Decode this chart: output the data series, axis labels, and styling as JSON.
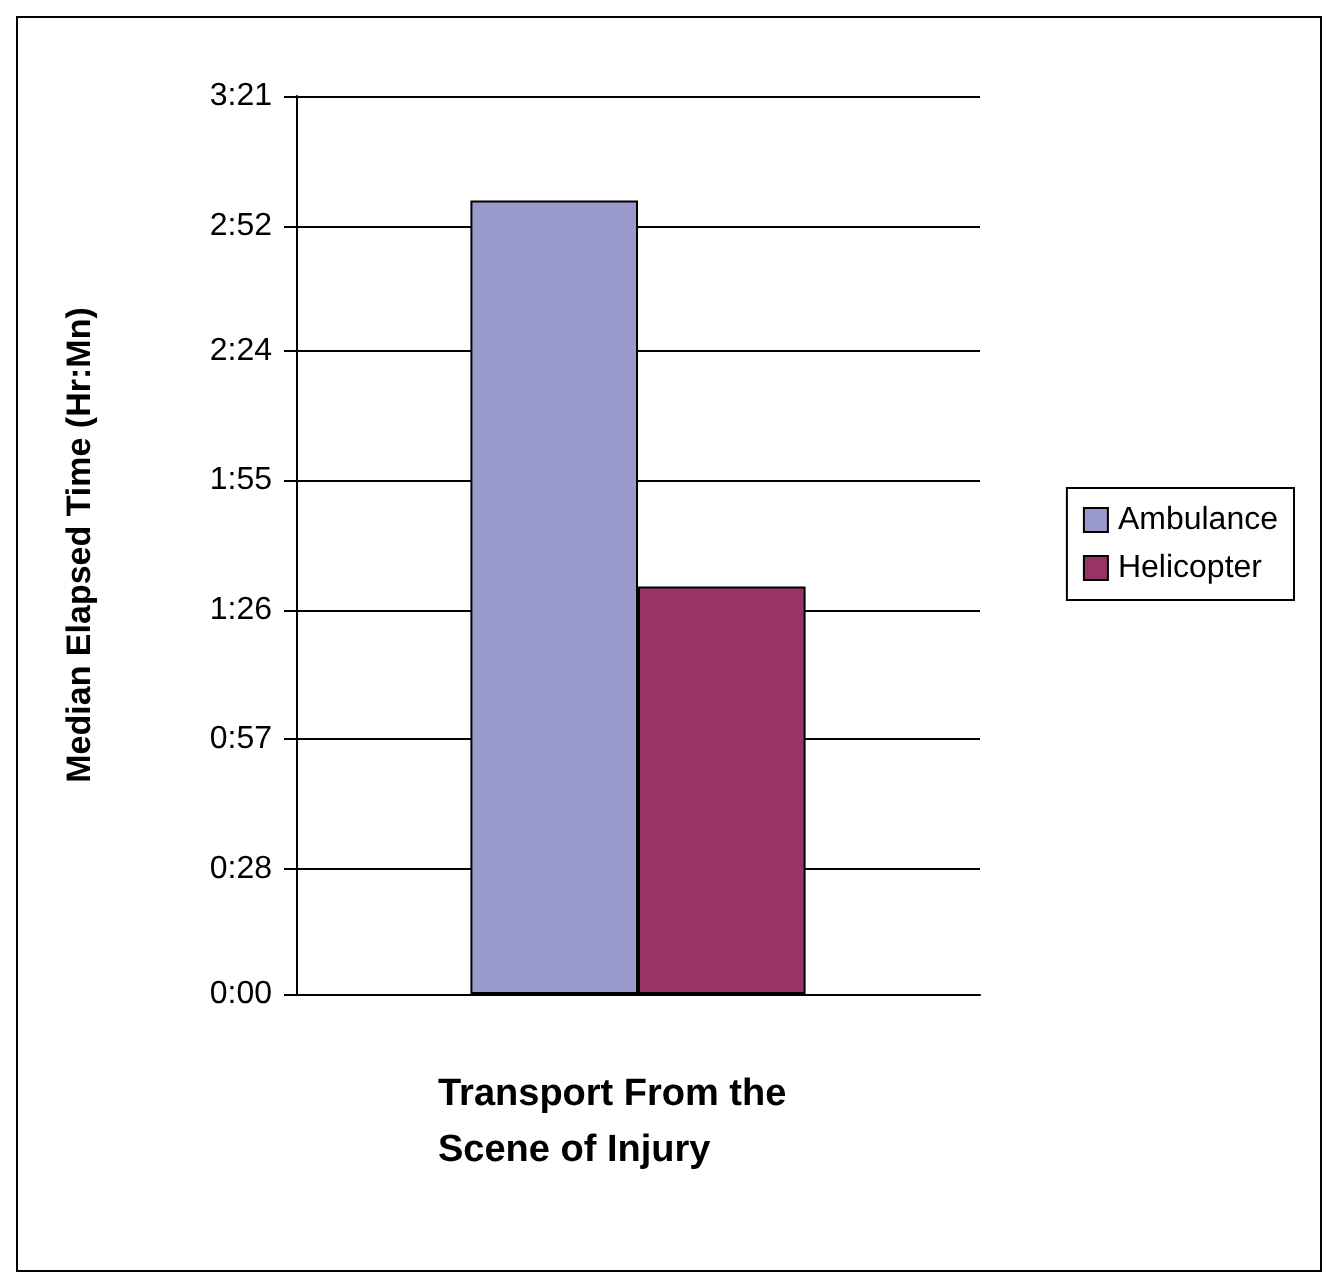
{
  "chart_data": {
    "type": "bar",
    "xlabel": "Transport From the Scene of Injury",
    "ylabel": "Median Elapsed Time (Hr:Mn)",
    "categories": [
      null
    ],
    "series": [
      {
        "name": "Ambulance",
        "color": "#9999cc",
        "values": [
          2.96
        ]
      },
      {
        "name": "Helicopter",
        "color": "#993366",
        "values": [
          1.52
        ]
      }
    ],
    "ylim": [
      0,
      3.35
    ],
    "yticks": [
      {
        "value": 0,
        "label": "0:00"
      },
      {
        "value": 0.4667,
        "label": "0:28"
      },
      {
        "value": 0.95,
        "label": "0:57"
      },
      {
        "value": 1.4333,
        "label": "1:26"
      },
      {
        "value": 1.9167,
        "label": "1:55"
      },
      {
        "value": 2.4,
        "label": "2:24"
      },
      {
        "value": 2.8667,
        "label": "2:52"
      },
      {
        "value": 3.35,
        "label": "3:21"
      }
    ],
    "grid": "y",
    "legend": "right"
  }
}
